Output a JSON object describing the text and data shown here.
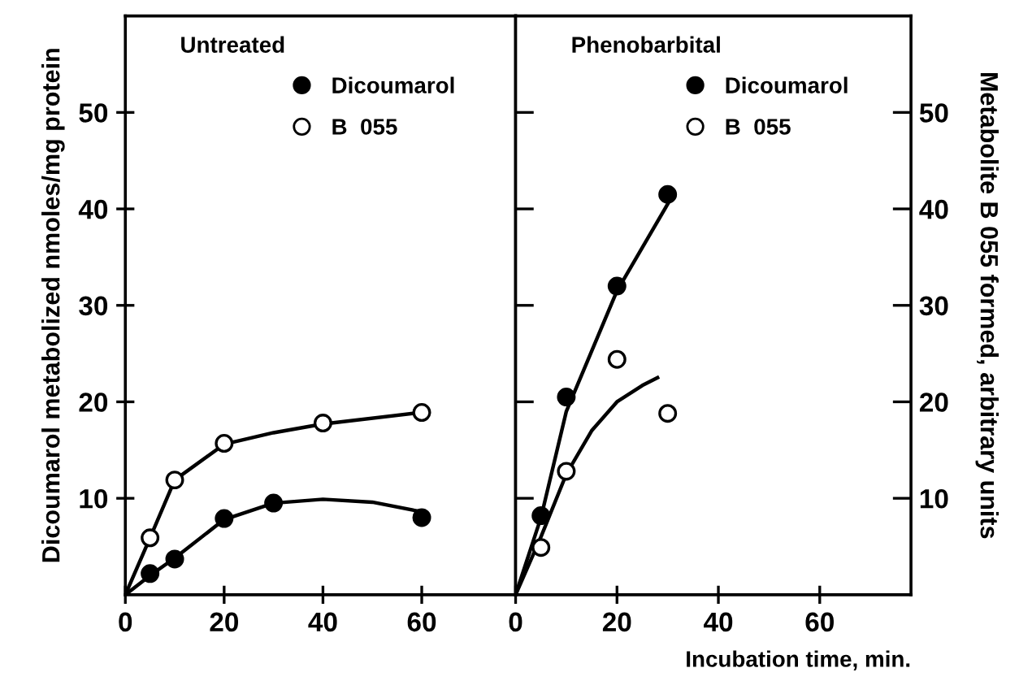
{
  "chart_data": [
    {
      "type": "scatter",
      "title": "Untreated",
      "ylabel": "Dicoumarol metabolized nmoles/mg protein",
      "xlim": [
        0,
        79
      ],
      "ylim": [
        0,
        60
      ],
      "xticks": [
        0,
        20,
        40,
        60
      ],
      "yticks": [
        10,
        20,
        30,
        40,
        50
      ],
      "legend": "top",
      "grid": false,
      "series": [
        {
          "name": "Dicoumarol",
          "marker": "circle",
          "color": "#000000",
          "x": [
            5,
            10,
            20,
            30,
            60
          ],
          "values": [
            2.2,
            3.7,
            7.9,
            9.5,
            8.0
          ]
        },
        {
          "name": "B  055",
          "marker": "circle",
          "color": "#ffffff",
          "x": [
            5,
            10,
            20,
            40,
            60
          ],
          "values": [
            5.9,
            11.9,
            15.7,
            17.8,
            18.9
          ]
        },
        {
          "type": "line",
          "marker": "none",
          "color": "#000000",
          "x": [
            0,
            5,
            10,
            20,
            30,
            40,
            50,
            60
          ],
          "values": [
            0,
            2.0,
            3.8,
            7.8,
            9.5,
            9.9,
            9.6,
            8.6
          ]
        },
        {
          "type": "line",
          "marker": "none",
          "color": "#000000",
          "x": [
            0,
            5,
            10,
            20,
            30,
            40,
            60
          ],
          "values": [
            0,
            5.9,
            11.9,
            15.6,
            16.8,
            17.7,
            18.9
          ]
        }
      ]
    },
    {
      "type": "scatter",
      "title": "Phenobarbital",
      "xlabel": "Incubation time, min.",
      "ylabel": "Metabolite B 055 formed, arbitrary units",
      "xlim": [
        0,
        78
      ],
      "ylim": [
        0,
        60
      ],
      "xticks": [
        0,
        20,
        40,
        60
      ],
      "yticks": [
        10,
        20,
        30,
        40,
        50
      ],
      "legend": "top",
      "grid": false,
      "series": [
        {
          "name": "Dicoumarol",
          "marker": "circle",
          "color": "#000000",
          "x": [
            5,
            10,
            20,
            30
          ],
          "values": [
            8.2,
            20.5,
            32,
            41.5
          ]
        },
        {
          "name": "B  055",
          "marker": "circle",
          "color": "#ffffff",
          "x": [
            5,
            10,
            20,
            30
          ],
          "values": [
            4.9,
            12.8,
            24.4,
            18.8
          ]
        },
        {
          "type": "line",
          "marker": "none",
          "color": "#000000",
          "x": [
            0,
            5,
            10,
            20,
            30
          ],
          "values": [
            0,
            8,
            19,
            31.5,
            40.5
          ]
        },
        {
          "type": "line",
          "marker": "none",
          "color": "#000000",
          "x": [
            0,
            5,
            10,
            15,
            20,
            25,
            28
          ],
          "values": [
            0,
            6,
            12.5,
            17,
            20,
            21.7,
            22.5
          ]
        }
      ]
    }
  ]
}
